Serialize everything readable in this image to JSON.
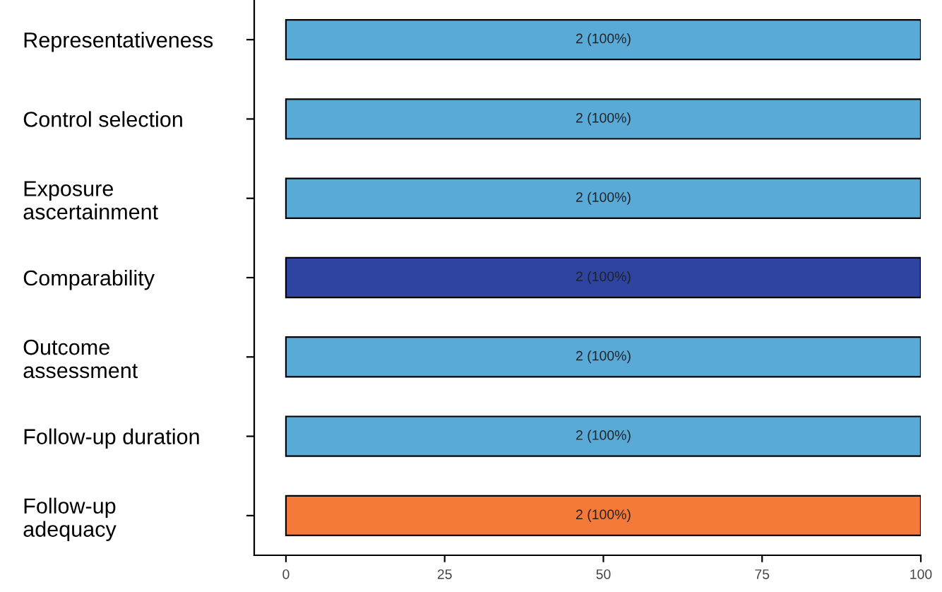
{
  "chart_data": {
    "type": "bar",
    "orientation": "horizontal",
    "categories": [
      "Representativeness",
      "Control selection",
      "Exposure\nascertainment",
      "Comparability",
      "Outcome\nassessment",
      "Follow-up duration",
      "Follow-up\nadequacy"
    ],
    "values": [
      100,
      100,
      100,
      100,
      100,
      100,
      100
    ],
    "colors": [
      "#5aaad8",
      "#5aaad8",
      "#5aaad8",
      "#2e44a0",
      "#5aaad8",
      "#5aaad8",
      "#f47a3a"
    ],
    "value_labels": [
      "2 (100%)",
      "2 (100%)",
      "2 (100%)",
      "2 (100%)",
      "2 (100%)",
      "2 (100%)",
      "2 (100%)"
    ],
    "xlim": [
      -5,
      100
    ],
    "xticks": [
      0,
      25,
      50,
      75,
      100
    ],
    "grid": false,
    "legend": false
  }
}
